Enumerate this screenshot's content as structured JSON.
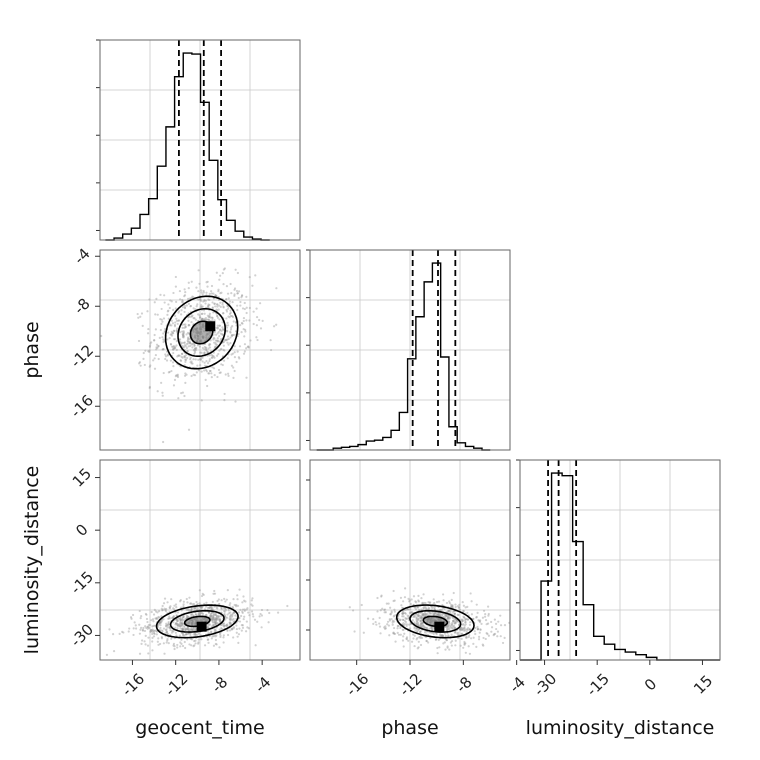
{
  "chart_data": {
    "type": "corner",
    "parameters": [
      "geocent_time",
      "phase",
      "luminosity_distance"
    ],
    "grid": true,
    "quantile_style": "dashed",
    "diagonal": [
      {
        "parameter": "geocent_time",
        "range": [
          -19,
          -0.5
        ],
        "bin_width": 0.8,
        "bin_start": -18.5,
        "counts": [
          0.0,
          0.2,
          0.6,
          1.2,
          2.6,
          4.2,
          7.5,
          11.5,
          16.6,
          19.0,
          18.9,
          14.0,
          8.1,
          4.1,
          2.0,
          0.9,
          0.3,
          0.1,
          0.0
        ],
        "quantiles": [
          -11.7,
          -9.4,
          -7.8
        ],
        "xticks": [],
        "yticks": []
      },
      {
        "parameter": "phase",
        "range": [
          -19.5,
          -4.5
        ],
        "bin_width": 0.62,
        "bin_start": -19.0,
        "counts": [
          0.0,
          0.0,
          0.2,
          0.3,
          0.4,
          0.6,
          1.0,
          1.1,
          1.4,
          2.2,
          4.2,
          10.2,
          14.9,
          18.8,
          20.9,
          10.4,
          2.6,
          0.8,
          0.4,
          0.2,
          0.0
        ],
        "quantiles": [
          -11.8,
          -9.9,
          -8.6
        ],
        "xticks": [],
        "yticks": []
      },
      {
        "parameter": "luminosity_distance",
        "range": [
          -37,
          20
        ],
        "bin_width": 3.0,
        "bin_start": -37.0,
        "counts": [
          0.0,
          0.0,
          3.0,
          7.1,
          7.0,
          4.5,
          2.1,
          0.9,
          0.6,
          0.4,
          0.3,
          0.2,
          0.1,
          0.0,
          0.0,
          0.0,
          0.0,
          0.0,
          0.0
        ],
        "quantiles": [
          -29.0,
          -26.0,
          -21.0
        ],
        "xticks": [
          "-30",
          "-15",
          "0",
          "15"
        ],
        "xtick_values": [
          -30,
          -15,
          0,
          15
        ],
        "yticks": []
      }
    ],
    "pairs": [
      {
        "x_parameter": "geocent_time",
        "y_parameter": "phase",
        "xrange": [
          -19,
          -0.5
        ],
        "yrange": [
          -19.5,
          -3.5
        ],
        "center": [
          -9.6,
          -10.1
        ],
        "sigma": [
          2.3,
          2.0
        ],
        "correlation": 0.15,
        "peak": [
          -8.8,
          -9.6
        ],
        "xticks": [],
        "yticks": [
          "-4",
          "-8",
          "-12",
          "-16"
        ],
        "ytick_values": [
          -4,
          -8,
          -12,
          -16
        ]
      },
      {
        "x_parameter": "geocent_time",
        "y_parameter": "luminosity_distance",
        "xrange": [
          -19,
          -0.5
        ],
        "yrange": [
          -37,
          20
        ],
        "center": [
          -10.0,
          -26.0
        ],
        "sigma": [
          2.6,
          3.2
        ],
        "correlation": 0.3,
        "peak": [
          -9.6,
          -27.5
        ],
        "xticks": [
          "-16",
          "-12",
          "-8",
          "-4"
        ],
        "xtick_values": [
          -16,
          -12,
          -8,
          -4
        ],
        "yticks": [
          "15",
          "0",
          "-15",
          "-30"
        ],
        "ytick_values": [
          15,
          0,
          -15,
          -30
        ]
      },
      {
        "x_parameter": "phase",
        "y_parameter": "luminosity_distance",
        "xrange": [
          -19.5,
          -4.5
        ],
        "yrange": [
          -37,
          20
        ],
        "center": [
          -10.1,
          -26.0
        ],
        "sigma": [
          2.0,
          3.2
        ],
        "correlation": -0.25,
        "peak": [
          -9.8,
          -27.5
        ],
        "xticks": [
          "-16",
          "-12",
          "-8",
          "-4"
        ],
        "xtick_values": [
          -16,
          -12,
          -8,
          -4
        ],
        "yticks": [],
        "ytick_values": []
      }
    ],
    "xlabels": [
      "geocent_time",
      "phase",
      "luminosity_distance"
    ],
    "ylabels": [
      "",
      "phase",
      "luminosity_distance"
    ]
  }
}
